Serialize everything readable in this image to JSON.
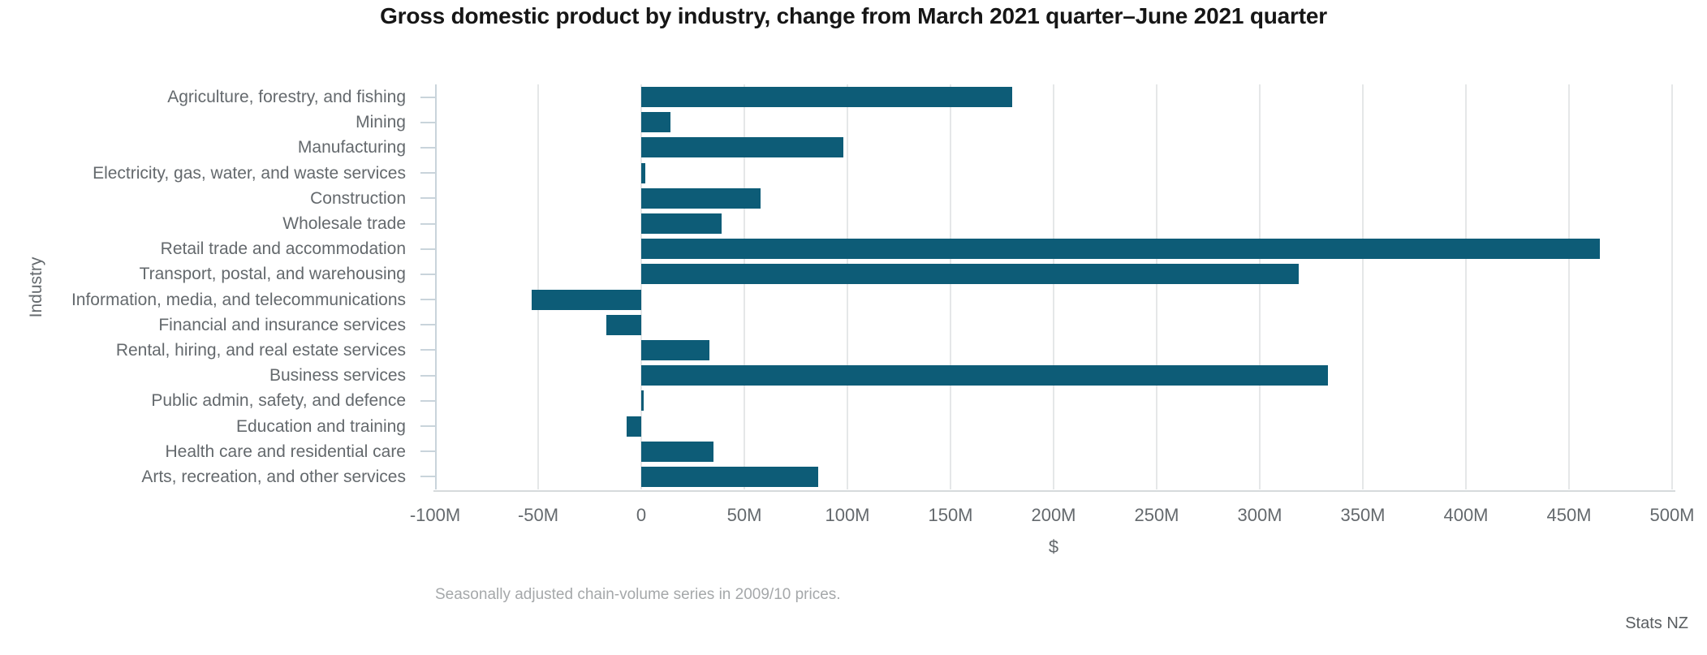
{
  "title": "Gross domestic product by industry, change from March 2021 quarter–June 2021 quarter",
  "footnote": "Seasonally adjusted chain-volume series in 2009/10 prices.",
  "source": "Stats NZ",
  "chart_data": {
    "type": "bar",
    "orientation": "horizontal",
    "title": "Gross domestic product by industry, change from March 2021 quarter–June 2021 quarter",
    "xlabel": "$",
    "ylabel": "Industry",
    "unit": "millions of dollars",
    "xlim": [
      -100,
      500
    ],
    "x_tick_values": [
      -100,
      -50,
      0,
      50,
      100,
      150,
      200,
      250,
      300,
      350,
      400,
      450,
      500
    ],
    "x_tick_labels": [
      "-100M",
      "-50M",
      "0",
      "50M",
      "100M",
      "150M",
      "200M",
      "250M",
      "300M",
      "350M",
      "400M",
      "450M",
      "500M"
    ],
    "grid": true,
    "legend": false,
    "categories": [
      "Agriculture, forestry, and fishing",
      "Mining",
      "Manufacturing",
      "Electricity, gas, water, and waste services",
      "Construction",
      "Wholesale trade",
      "Retail trade and accommodation",
      "Transport, postal, and warehousing",
      "Information, media, and telecommunications",
      "Financial and insurance services",
      "Rental, hiring, and real estate services",
      "Business services",
      "Public admin, safety, and defence",
      "Education and training",
      "Health care and residential care",
      "Arts, recreation, and other services"
    ],
    "values": [
      180,
      14,
      98,
      2,
      58,
      39,
      465,
      319,
      -53,
      -17,
      33,
      333,
      1,
      -7,
      35,
      86
    ],
    "bar_color": "#0d5c77"
  }
}
